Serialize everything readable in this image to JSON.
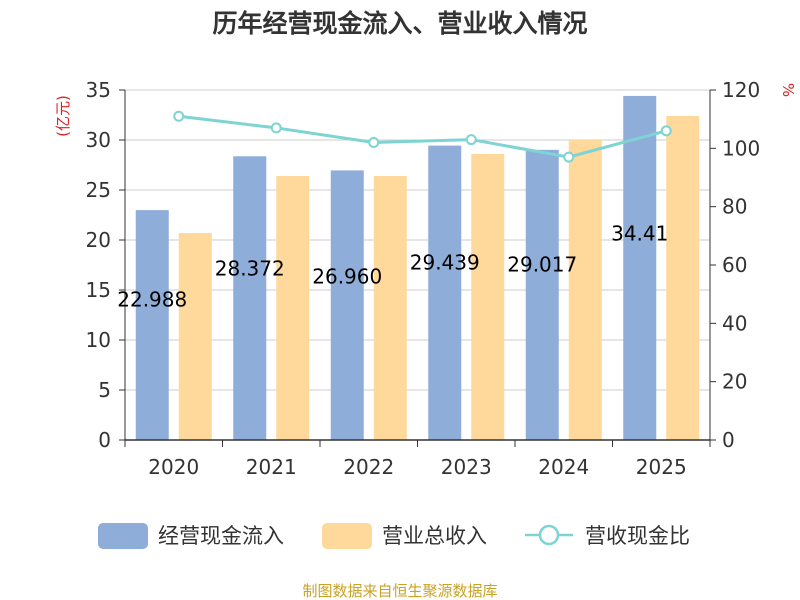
{
  "chart_data": {
    "type": "bar",
    "title": "历年经营现金流入、营业收入情况",
    "categories": [
      "2020",
      "2021",
      "2022",
      "2023",
      "2024",
      "2025"
    ],
    "left_unit": "(亿元)",
    "right_unit": "%",
    "ylim": [
      0,
      35
    ],
    "y_ticks": [
      "0",
      "5",
      "10",
      "15",
      "20",
      "25",
      "30",
      "35"
    ],
    "y2lim": [
      0,
      120
    ],
    "y2_ticks": [
      "0",
      "20",
      "40",
      "60",
      "80",
      "100",
      "120"
    ],
    "series": [
      {
        "name": "经营现金流入",
        "kind": "bar",
        "axis": "left",
        "color": "#8eadd9",
        "values": [
          22.988,
          28.372,
          26.96,
          29.439,
          29.017,
          34.41
        ],
        "labels": [
          "22.988",
          "28.372",
          "26.960",
          "29.439",
          "29.017",
          "34.41"
        ]
      },
      {
        "name": "营业总收入",
        "kind": "bar",
        "axis": "left",
        "color": "#fed99b",
        "values": [
          20.7,
          26.4,
          26.4,
          28.6,
          30.0,
          32.4
        ]
      },
      {
        "name": "营收现金比",
        "kind": "line",
        "axis": "right",
        "color": "#7ed3d3",
        "values": [
          111,
          107,
          102,
          103,
          97,
          106
        ]
      }
    ],
    "grid": true,
    "legend_position": "bottom"
  },
  "source_text": "制图数据来自恒生聚源数据库"
}
